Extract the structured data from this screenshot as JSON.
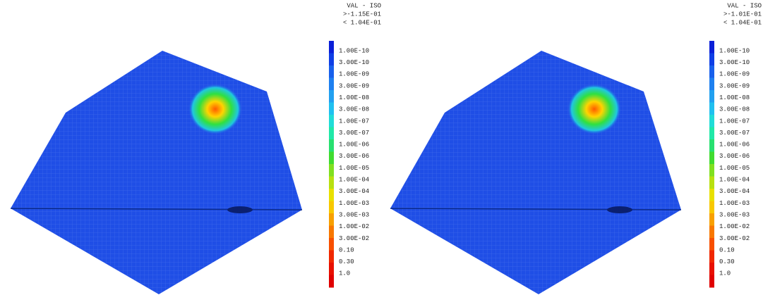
{
  "panels": [
    {
      "header": [
        "VAL - ISO",
        ">-1.15E-01",
        "< 1.04E-01"
      ],
      "legend": [
        "1.00E-10",
        "3.00E-10",
        "1.00E-09",
        "3.00E-09",
        "1.00E-08",
        "3.00E-08",
        "1.00E-07",
        "3.00E-07",
        "1.00E-06",
        "3.00E-06",
        "1.00E-05",
        "1.00E-04",
        "3.00E-04",
        "1.00E-03",
        "3.00E-03",
        "1.00E-02",
        "3.00E-02",
        "0.10",
        "0.30",
        "1.0"
      ]
    },
    {
      "header": [
        "VAL - ISO",
        ">-1.01E-01",
        "< 1.04E-01"
      ],
      "legend": [
        "1.00E-10",
        "3.00E-10",
        "1.00E-09",
        "3.00E-09",
        "1.00E-08",
        "3.00E-08",
        "1.00E-07",
        "3.00E-07",
        "1.00E-06",
        "3.00E-06",
        "1.00E-05",
        "1.00E-04",
        "3.00E-04",
        "1.00E-03",
        "3.00E-03",
        "1.00E-02",
        "3.00E-02",
        "0.10",
        "0.30",
        "1.0"
      ]
    }
  ]
}
